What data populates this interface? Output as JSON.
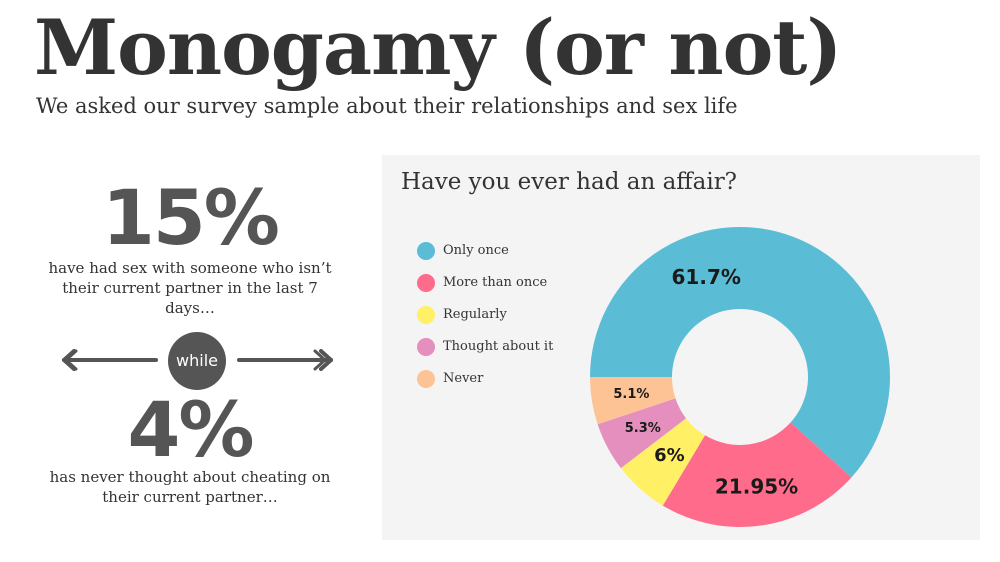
{
  "header": {
    "title": "Monogamy (or not)",
    "subtitle": "We asked our survey sample about their relationships and sex life"
  },
  "stats": {
    "first_value": "15%",
    "first_text": "have had sex with someone who isn’t their current partner in the last 7 days…",
    "connector": "while",
    "second_value": "4%",
    "second_text": "has never thought about cheating on their current partner…"
  },
  "colors": {
    "only_once": "#5bbcd6",
    "more_than_once": "#ff6b8b",
    "regularly": "#fff066",
    "thought_about_it": "#e48fbd",
    "never": "#fdc394",
    "panel_bg": "#f4f4f4",
    "text": "#333333"
  },
  "chart_data": {
    "type": "pie",
    "title": "Have you ever had an affair?",
    "donut": true,
    "legend_position": "left",
    "categories": [
      "Only once",
      "More than once",
      "Regularly",
      "Thought about it",
      "Never"
    ],
    "values": [
      61.7,
      21.95,
      6,
      5.3,
      5.1
    ],
    "value_labels": [
      "61.7%",
      "21.95%",
      "6%",
      "5.3%",
      "5.1%"
    ],
    "colors": [
      "#5bbcd6",
      "#ff6b8b",
      "#fff066",
      "#e48fbd",
      "#fdc394"
    ]
  }
}
